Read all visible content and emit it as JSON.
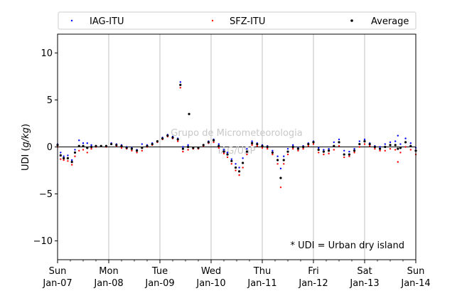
{
  "chart_data": {
    "type": "scatter",
    "ylabel_prefix": "UDI (",
    "ylabel_var": "g/kg",
    "ylabel_suffix": ")",
    "ylim": [
      -12,
      12
    ],
    "xlim": [
      0,
      7
    ],
    "grid": "vertical",
    "legend_placement": "top (above plot, 3 columns)",
    "annotation": "* UDI = Urban dry island",
    "watermark": [
      "Grupo de Micrometeorologia",
      "IAG/USP"
    ],
    "y_ticks": [
      {
        "v": 10,
        "label": "10"
      },
      {
        "v": 5,
        "label": "5"
      },
      {
        "v": 0,
        "label": "0"
      },
      {
        "v": -5,
        "label": "−5"
      },
      {
        "v": -10,
        "label": "−10"
      }
    ],
    "x_ticks": [
      {
        "v": 0,
        "day": "Sun",
        "date": "Jan-07"
      },
      {
        "v": 1,
        "day": "Mon",
        "date": "Jan-08"
      },
      {
        "v": 2,
        "day": "Tue",
        "date": "Jan-09"
      },
      {
        "v": 3,
        "day": "Wed",
        "date": "Jan-10"
      },
      {
        "v": 4,
        "day": "Thu",
        "date": "Jan-11"
      },
      {
        "v": 5,
        "day": "Fri",
        "date": "Jan-12"
      },
      {
        "v": 6,
        "day": "Sat",
        "date": "Jan-13"
      },
      {
        "v": 7,
        "day": "Sun",
        "date": "Jan-14"
      }
    ],
    "series": [
      {
        "name": "IAG-ITU",
        "color": "#0000ff",
        "points": [
          [
            0.0,
            0.3
          ],
          [
            0.06,
            -0.6
          ],
          [
            0.12,
            -1.0
          ],
          [
            0.2,
            -0.9
          ],
          [
            0.28,
            -1.4
          ],
          [
            0.34,
            -0.3
          ],
          [
            0.42,
            0.7
          ],
          [
            0.5,
            0.4
          ],
          [
            0.58,
            0.4
          ],
          [
            0.66,
            0.2
          ],
          [
            0.75,
            0.1
          ],
          [
            0.85,
            0.1
          ],
          [
            0.95,
            0.1
          ],
          [
            1.05,
            0.4
          ],
          [
            1.15,
            0.3
          ],
          [
            1.25,
            0.2
          ],
          [
            1.35,
            0.0
          ],
          [
            1.45,
            -0.1
          ],
          [
            1.55,
            -0.3
          ],
          [
            1.65,
            0.3
          ],
          [
            1.75,
            0.2
          ],
          [
            1.85,
            0.4
          ],
          [
            1.95,
            0.6
          ],
          [
            2.05,
            1.0
          ],
          [
            2.15,
            1.3
          ],
          [
            2.25,
            1.1
          ],
          [
            2.35,
            0.9
          ],
          [
            2.4,
            6.9
          ],
          [
            2.45,
            0.0
          ],
          [
            2.55,
            0.2
          ],
          [
            2.65,
            -0.1
          ],
          [
            2.75,
            -0.1
          ],
          [
            2.85,
            0.2
          ],
          [
            2.95,
            0.6
          ],
          [
            3.05,
            0.8
          ],
          [
            3.15,
            0.3
          ],
          [
            3.25,
            -0.3
          ],
          [
            3.32,
            -0.6
          ],
          [
            3.4,
            -1.3
          ],
          [
            3.48,
            -1.8
          ],
          [
            3.55,
            -2.2
          ],
          [
            3.62,
            -1.2
          ],
          [
            3.7,
            -0.2
          ],
          [
            3.8,
            0.6
          ],
          [
            3.9,
            0.4
          ],
          [
            4.0,
            0.2
          ],
          [
            4.1,
            0.1
          ],
          [
            4.2,
            -0.4
          ],
          [
            4.3,
            -1.0
          ],
          [
            4.36,
            -2.3
          ],
          [
            4.42,
            -1.0
          ],
          [
            4.5,
            -0.2
          ],
          [
            4.6,
            0.2
          ],
          [
            4.7,
            -0.1
          ],
          [
            4.8,
            0.1
          ],
          [
            4.9,
            0.4
          ],
          [
            5.0,
            0.6
          ],
          [
            5.1,
            -0.1
          ],
          [
            5.2,
            -0.3
          ],
          [
            5.3,
            -0.2
          ],
          [
            5.4,
            0.5
          ],
          [
            5.5,
            0.8
          ],
          [
            5.6,
            -0.4
          ],
          [
            5.7,
            -0.5
          ],
          [
            5.8,
            -0.2
          ],
          [
            5.9,
            0.6
          ],
          [
            6.0,
            0.8
          ],
          [
            6.1,
            0.4
          ],
          [
            6.2,
            0.1
          ],
          [
            6.3,
            0.0
          ],
          [
            6.4,
            0.3
          ],
          [
            6.5,
            0.5
          ],
          [
            6.6,
            0.6
          ],
          [
            6.65,
            1.2
          ],
          [
            6.7,
            0.3
          ],
          [
            6.8,
            0.9
          ],
          [
            6.9,
            0.4
          ],
          [
            7.0,
            -0.1
          ]
        ]
      },
      {
        "name": "SFZ-ITU",
        "color": "#ff0000",
        "points": [
          [
            0.0,
            0.0
          ],
          [
            0.06,
            -1.3
          ],
          [
            0.12,
            -1.4
          ],
          [
            0.2,
            -1.5
          ],
          [
            0.28,
            -1.9
          ],
          [
            0.34,
            -1.0
          ],
          [
            0.42,
            -0.4
          ],
          [
            0.5,
            -0.3
          ],
          [
            0.58,
            -0.6
          ],
          [
            0.66,
            -0.2
          ],
          [
            0.75,
            0.0
          ],
          [
            0.85,
            0.1
          ],
          [
            0.95,
            0.0
          ],
          [
            1.05,
            0.3
          ],
          [
            1.15,
            0.1
          ],
          [
            1.25,
            -0.1
          ],
          [
            1.35,
            -0.2
          ],
          [
            1.45,
            -0.4
          ],
          [
            1.55,
            -0.6
          ],
          [
            1.65,
            -0.4
          ],
          [
            1.75,
            0.0
          ],
          [
            1.85,
            0.2
          ],
          [
            1.95,
            0.5
          ],
          [
            2.05,
            0.8
          ],
          [
            2.15,
            1.1
          ],
          [
            2.25,
            0.9
          ],
          [
            2.35,
            0.6
          ],
          [
            2.4,
            6.3
          ],
          [
            2.45,
            -0.5
          ],
          [
            2.55,
            -0.3
          ],
          [
            2.65,
            -0.2
          ],
          [
            2.75,
            -0.2
          ],
          [
            2.85,
            0.1
          ],
          [
            2.95,
            0.4
          ],
          [
            3.05,
            0.5
          ],
          [
            3.15,
            -0.1
          ],
          [
            3.25,
            -0.7
          ],
          [
            3.32,
            -1.1
          ],
          [
            3.4,
            -1.8
          ],
          [
            3.48,
            -2.5
          ],
          [
            3.55,
            -3.0
          ],
          [
            3.62,
            -2.2
          ],
          [
            3.7,
            -0.8
          ],
          [
            3.8,
            0.2
          ],
          [
            3.9,
            0.1
          ],
          [
            4.0,
            -0.1
          ],
          [
            4.1,
            -0.2
          ],
          [
            4.2,
            -0.8
          ],
          [
            4.3,
            -1.8
          ],
          [
            4.36,
            -4.3
          ],
          [
            4.42,
            -1.8
          ],
          [
            4.5,
            -0.8
          ],
          [
            4.6,
            -0.2
          ],
          [
            4.7,
            -0.4
          ],
          [
            4.8,
            -0.2
          ],
          [
            4.9,
            0.1
          ],
          [
            5.0,
            0.3
          ],
          [
            5.1,
            -0.6
          ],
          [
            5.2,
            -0.8
          ],
          [
            5.3,
            -0.7
          ],
          [
            5.4,
            -0.3
          ],
          [
            5.5,
            0.1
          ],
          [
            5.6,
            -1.1
          ],
          [
            5.7,
            -1.0
          ],
          [
            5.8,
            -0.6
          ],
          [
            5.9,
            0.0
          ],
          [
            6.0,
            0.3
          ],
          [
            6.1,
            0.1
          ],
          [
            6.2,
            -0.2
          ],
          [
            6.3,
            -0.4
          ],
          [
            6.4,
            -0.4
          ],
          [
            6.5,
            -0.2
          ],
          [
            6.6,
            -0.3
          ],
          [
            6.65,
            -1.6
          ],
          [
            6.7,
            -0.6
          ],
          [
            6.8,
            0.0
          ],
          [
            6.9,
            -0.3
          ],
          [
            7.0,
            -0.8
          ]
        ]
      },
      {
        "name": "Average",
        "color": "#000000",
        "points": [
          [
            0.0,
            0.2
          ],
          [
            0.06,
            -0.9
          ],
          [
            0.12,
            -1.2
          ],
          [
            0.2,
            -1.2
          ],
          [
            0.28,
            -1.6
          ],
          [
            0.34,
            -0.6
          ],
          [
            0.42,
            0.1
          ],
          [
            0.5,
            0.1
          ],
          [
            0.58,
            -0.1
          ],
          [
            0.66,
            0.0
          ],
          [
            0.75,
            0.1
          ],
          [
            0.85,
            0.1
          ],
          [
            0.95,
            0.1
          ],
          [
            1.05,
            0.3
          ],
          [
            1.15,
            0.2
          ],
          [
            1.25,
            0.1
          ],
          [
            1.35,
            -0.1
          ],
          [
            1.45,
            -0.2
          ],
          [
            1.55,
            -0.4
          ],
          [
            1.65,
            -0.1
          ],
          [
            1.75,
            0.1
          ],
          [
            1.85,
            0.3
          ],
          [
            1.95,
            0.6
          ],
          [
            2.05,
            0.9
          ],
          [
            2.15,
            1.2
          ],
          [
            2.25,
            1.0
          ],
          [
            2.35,
            0.8
          ],
          [
            2.4,
            6.6
          ],
          [
            2.45,
            -0.2
          ],
          [
            2.55,
            0.0
          ],
          [
            2.57,
            3.5
          ],
          [
            2.65,
            -0.1
          ],
          [
            2.75,
            -0.1
          ],
          [
            2.85,
            0.2
          ],
          [
            2.95,
            0.5
          ],
          [
            3.05,
            0.7
          ],
          [
            3.15,
            0.1
          ],
          [
            3.25,
            -0.5
          ],
          [
            3.32,
            -0.8
          ],
          [
            3.4,
            -1.5
          ],
          [
            3.48,
            -2.2
          ],
          [
            3.55,
            -2.6
          ],
          [
            3.62,
            -1.7
          ],
          [
            3.7,
            -0.5
          ],
          [
            3.8,
            0.4
          ],
          [
            3.9,
            0.3
          ],
          [
            4.0,
            0.1
          ],
          [
            4.1,
            0.0
          ],
          [
            4.2,
            -0.6
          ],
          [
            4.3,
            -1.4
          ],
          [
            4.36,
            -3.3
          ],
          [
            4.42,
            -1.4
          ],
          [
            4.5,
            -0.5
          ],
          [
            4.6,
            0.0
          ],
          [
            4.7,
            -0.2
          ],
          [
            4.8,
            0.0
          ],
          [
            4.9,
            0.3
          ],
          [
            5.0,
            0.5
          ],
          [
            5.1,
            -0.3
          ],
          [
            5.2,
            -0.5
          ],
          [
            5.3,
            -0.4
          ],
          [
            5.4,
            0.1
          ],
          [
            5.5,
            0.5
          ],
          [
            5.6,
            -0.8
          ],
          [
            5.7,
            -0.8
          ],
          [
            5.8,
            -0.4
          ],
          [
            5.9,
            0.3
          ],
          [
            6.0,
            0.6
          ],
          [
            6.1,
            0.3
          ],
          [
            6.2,
            0.0
          ],
          [
            6.3,
            -0.2
          ],
          [
            6.4,
            0.0
          ],
          [
            6.5,
            0.2
          ],
          [
            6.6,
            0.2
          ],
          [
            6.65,
            -0.2
          ],
          [
            6.7,
            -0.1
          ],
          [
            6.8,
            0.5
          ],
          [
            6.9,
            0.1
          ],
          [
            7.0,
            -0.4
          ]
        ]
      }
    ]
  }
}
